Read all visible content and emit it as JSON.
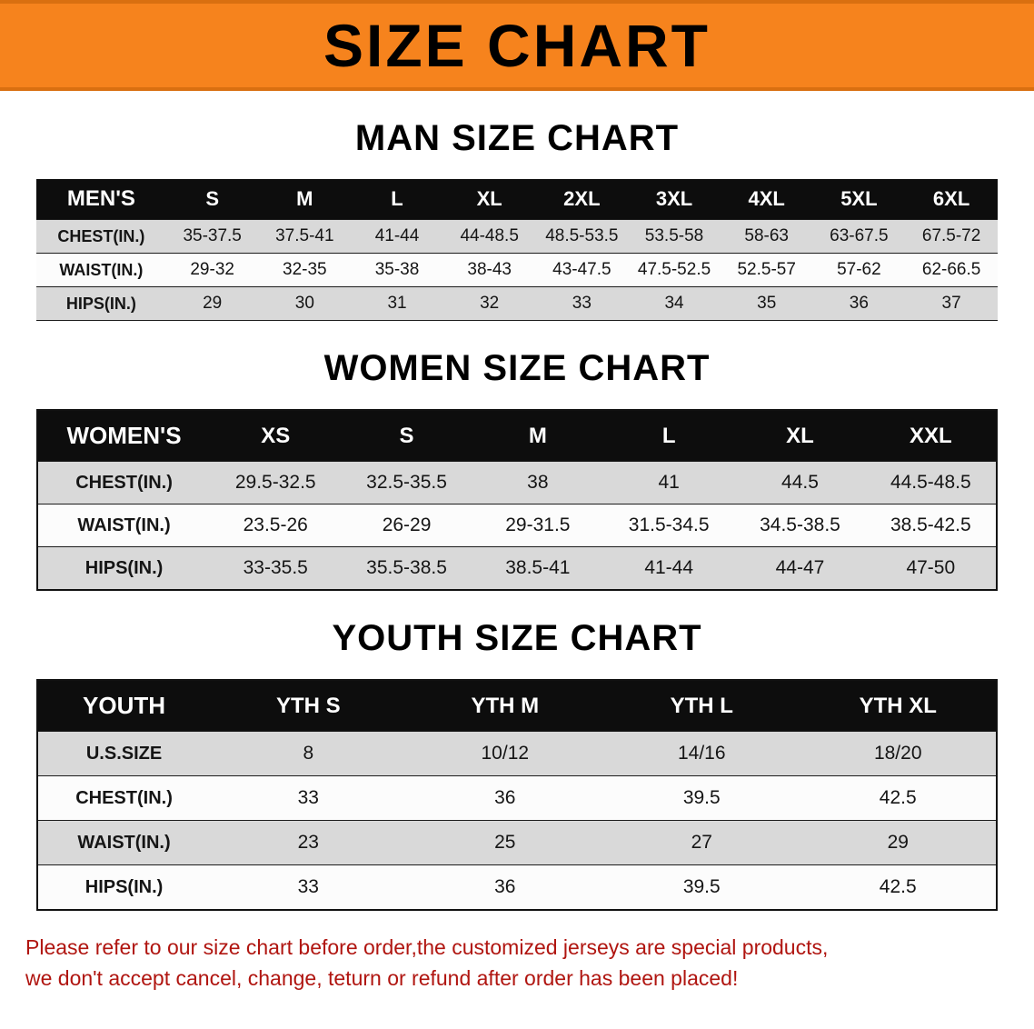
{
  "banner": {
    "title": "SIZE CHART"
  },
  "colors": {
    "banner_bg": "#f6831d",
    "banner_edge": "#d96f10",
    "header_bg": "#0d0d0d",
    "row_alt": "#d9d9d9",
    "footer_text": "#b01510"
  },
  "chart_data": [
    {
      "type": "table",
      "title": "MAN SIZE CHART",
      "name": "men-size-table",
      "columns": [
        "MEN'S",
        "S",
        "M",
        "L",
        "XL",
        "2XL",
        "3XL",
        "4XL",
        "5XL",
        "6XL"
      ],
      "rows": [
        [
          "CHEST(IN.)",
          "35-37.5",
          "37.5-41",
          "41-44",
          "44-48.5",
          "48.5-53.5",
          "53.5-58",
          "58-63",
          "63-67.5",
          "67.5-72"
        ],
        [
          "WAIST(IN.)",
          "29-32",
          "32-35",
          "35-38",
          "38-43",
          "43-47.5",
          "47.5-52.5",
          "52.5-57",
          "57-62",
          "62-66.5"
        ],
        [
          "HIPS(IN.)",
          "29",
          "30",
          "31",
          "32",
          "33",
          "34",
          "35",
          "36",
          "37"
        ]
      ]
    },
    {
      "type": "table",
      "title": "WOMEN SIZE CHART",
      "name": "women-size-table",
      "columns": [
        "WOMEN'S",
        "XS",
        "S",
        "M",
        "L",
        "XL",
        "XXL"
      ],
      "rows": [
        [
          "CHEST(IN.)",
          "29.5-32.5",
          "32.5-35.5",
          "38",
          "41",
          "44.5",
          "44.5-48.5"
        ],
        [
          "WAIST(IN.)",
          "23.5-26",
          "26-29",
          "29-31.5",
          "31.5-34.5",
          "34.5-38.5",
          "38.5-42.5"
        ],
        [
          "HIPS(IN.)",
          "33-35.5",
          "35.5-38.5",
          "38.5-41",
          "41-44",
          "44-47",
          "47-50"
        ]
      ]
    },
    {
      "type": "table",
      "title": "YOUTH SIZE CHART",
      "name": "youth-size-table",
      "columns": [
        "YOUTH",
        "YTH S",
        "YTH M",
        "YTH L",
        "YTH XL"
      ],
      "rows": [
        [
          "U.S.SIZE",
          "8",
          "10/12",
          "14/16",
          "18/20"
        ],
        [
          "CHEST(IN.)",
          "33",
          "36",
          "39.5",
          "42.5"
        ],
        [
          "WAIST(IN.)",
          "23",
          "25",
          "27",
          "29"
        ],
        [
          "HIPS(IN.)",
          "33",
          "36",
          "39.5",
          "42.5"
        ]
      ]
    }
  ],
  "footer": {
    "line1": "Please refer to our size chart before order,the customized jerseys are special products,",
    "line2": "we don't accept cancel, change, teturn or refund after order has been placed!"
  }
}
